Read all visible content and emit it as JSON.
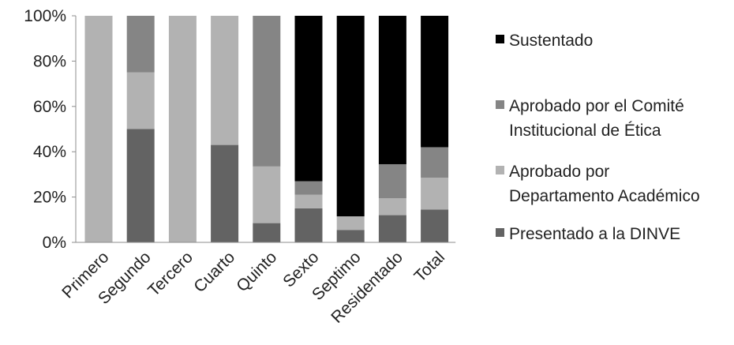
{
  "chart_data": {
    "type": "bar",
    "stacked": true,
    "percent": true,
    "categories": [
      "Primero",
      "Segundo",
      "Tercero",
      "Cuarto",
      "Quinto",
      "Sexto",
      "Septimo",
      "Residentado",
      "Total"
    ],
    "ylim": [
      0,
      100
    ],
    "yticks": [
      "0%",
      "20%",
      "40%",
      "60%",
      "80%",
      "100%"
    ],
    "grid": false,
    "legend_position": "right",
    "series": [
      {
        "name": "Presentado a la DINVE",
        "color": "#636363",
        "values": [
          0,
          50,
          0,
          43,
          8.5,
          15,
          5.5,
          12,
          14.5
        ]
      },
      {
        "name": "Aprobado por Departamento Académico",
        "color": "#b2b2b2",
        "values": [
          100,
          25,
          100,
          57,
          25,
          6,
          6,
          7.5,
          14
        ]
      },
      {
        "name": "Aprobado por el Comité Institucional de Ética",
        "color": "#858585",
        "values": [
          0,
          25,
          0,
          0,
          66.5,
          6,
          0,
          15,
          13.5
        ]
      },
      {
        "name": "Sustentado",
        "color": "#000000",
        "values": [
          0,
          0,
          0,
          0,
          0,
          73,
          88.5,
          65.5,
          58
        ]
      }
    ],
    "legend": [
      {
        "series": "Sustentado",
        "lines": [
          "Sustentado"
        ]
      },
      {
        "series": "Aprobado por el Comité Institucional de Ética",
        "lines": [
          "Aprobado por el Comité",
          "Institucional de Ética"
        ]
      },
      {
        "series": "Aprobado por Departamento Académico",
        "lines": [
          "Aprobado por",
          "Departamento Académico"
        ]
      },
      {
        "series": "Presentado a la DINVE",
        "lines": [
          "Presentado a la DINVE"
        ]
      }
    ]
  }
}
